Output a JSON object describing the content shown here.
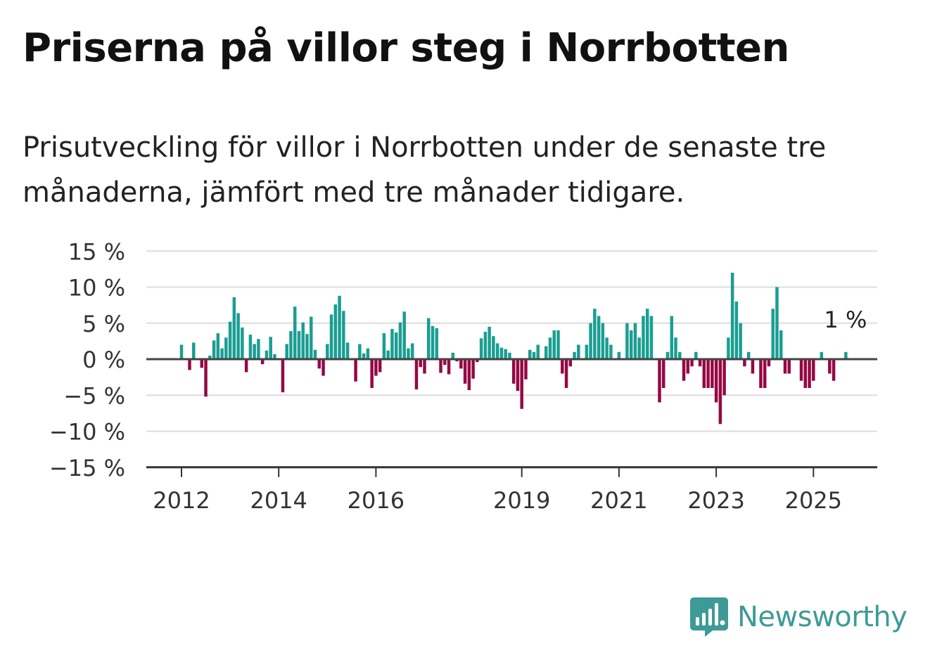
{
  "title": "Priserna på villor steg i Norrbotten",
  "subtitle": "Prisutveckling för villor i Norrbotten under de senaste tre månaderna, jämfört med tre månader tidigare.",
  "brand": {
    "name": "Newsworthy",
    "color": "#3d9a96",
    "icon": "bar-chart-speech-bubble-icon"
  },
  "chart_data": {
    "type": "bar",
    "unit": "%",
    "ylim": [
      -15,
      15
    ],
    "yticks": [
      15,
      10,
      5,
      0,
      -5,
      -10,
      -15
    ],
    "ytick_labels": [
      "15 %",
      "10 %",
      "5 %",
      "0 %",
      "−5 %",
      "−10 %",
      "−15 %"
    ],
    "xticks": [
      {
        "label": "2012",
        "x": 2012.0
      },
      {
        "label": "2014",
        "x": 2014.0
      },
      {
        "label": "2016",
        "x": 2016.0
      },
      {
        "label": "2019",
        "x": 2019.0
      },
      {
        "label": "2021",
        "x": 2021.0
      },
      {
        "label": "2023",
        "x": 2023.0
      },
      {
        "label": "2025",
        "x": 2025.0
      }
    ],
    "x_start": 2012.0,
    "x_step_months": 1,
    "positive_color": "#1a9e92",
    "negative_color": "#950844",
    "grid": true,
    "annotation": {
      "text": "1 %",
      "value": 1
    },
    "values": [
      2,
      0,
      -1.5,
      2.3,
      0,
      -1.2,
      -5.2,
      0.5,
      2.6,
      3.6,
      1.5,
      3,
      5.2,
      8.6,
      6.4,
      4.4,
      -1.8,
      3.4,
      2.1,
      2.8,
      -0.7,
      1.2,
      3.1,
      0.7,
      0,
      -4.6,
      2.1,
      3.9,
      7.3,
      3.9,
      5.1,
      3.5,
      5.9,
      1.3,
      -1.3,
      -2.3,
      2.1,
      6.2,
      7.6,
      8.8,
      6.7,
      2.3,
      0,
      -3.1,
      2.1,
      0.8,
      1.5,
      -4,
      -2.3,
      -1.8,
      3.6,
      1.2,
      4.2,
      3.7,
      5.1,
      6.6,
      1.5,
      2.2,
      -4.2,
      -1.1,
      -2,
      5.7,
      4.6,
      4.3,
      -1.9,
      -0.8,
      -2.1,
      0.9,
      -0.3,
      -1.3,
      -3.4,
      -4.3,
      -2.7,
      -0.4,
      2.9,
      3.8,
      4.5,
      3.2,
      2.2,
      1.6,
      1.4,
      0.9,
      -3.4,
      -4.4,
      -6.9,
      -2.8,
      1.3,
      1,
      2,
      0,
      1.8,
      3,
      4,
      4,
      -2,
      -4,
      -1,
      1,
      2,
      0,
      2,
      5,
      7,
      6,
      5,
      3,
      2,
      0,
      1,
      0,
      5,
      4,
      5,
      3,
      6,
      7,
      6,
      0,
      -6,
      -4,
      1,
      6,
      3,
      1,
      -3,
      -2,
      -1,
      1,
      -1,
      -4,
      -4,
      -4,
      -6,
      -9,
      -5,
      3,
      12,
      8,
      5,
      -1,
      1,
      -2,
      0,
      -4,
      -4,
      -1,
      7,
      10,
      4,
      -2,
      -2,
      0,
      0,
      -3,
      -4,
      -4,
      -3,
      0,
      1,
      0,
      -2,
      -3,
      0,
      0,
      1,
      0
    ]
  }
}
